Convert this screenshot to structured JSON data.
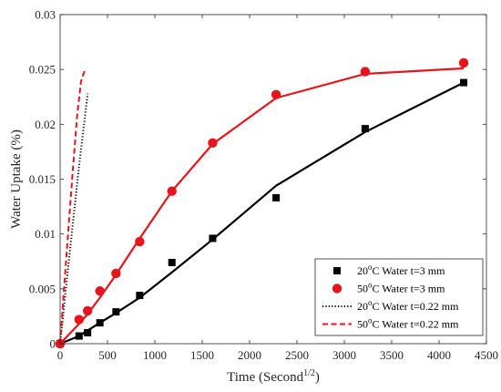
{
  "chart_data": {
    "type": "line",
    "xlabel": "Time (Second",
    "xlabel_sup": "1/2",
    "xlabel_end": ")",
    "ylabel": "Water Uptake (%)",
    "xlim": [
      0,
      4500
    ],
    "ylim": [
      0,
      0.03
    ],
    "xticks": [
      0,
      500,
      1000,
      1500,
      2000,
      2500,
      3000,
      3500,
      4000,
      4500
    ],
    "xtick_labels": [
      "0",
      "500",
      "1000",
      "1500",
      "2000",
      "2500",
      "3000",
      "3500",
      "4000",
      "4500"
    ],
    "yticks": [
      0,
      0.005,
      0.01,
      0.015,
      0.02,
      0.025,
      0.03
    ],
    "ytick_labels": [
      "0",
      "0.005",
      "0.01",
      "0.015",
      "0.02",
      "0.025",
      "0.03"
    ],
    "grid": false,
    "legend_position": "bottom-right",
    "colors": {
      "black": "#000000",
      "red": "#e8141b"
    },
    "series": [
      {
        "legend_pre": "20",
        "legend_sup": "o",
        "legend_post": "C Water t=3 mm",
        "kind": "markers",
        "marker": "square",
        "color": "#000000",
        "x": [
          0,
          200,
          290,
          420,
          590,
          840,
          1180,
          1610,
          2280,
          3220,
          4260
        ],
        "y": [
          0,
          0.0007,
          0.001,
          0.0019,
          0.0029,
          0.0044,
          0.0074,
          0.0096,
          0.0133,
          0.0196,
          0.0238
        ]
      },
      {
        "kind": "line",
        "style": "solid",
        "color": "#000000",
        "x": [
          0,
          200,
          290,
          420,
          590,
          840,
          1180,
          1610,
          2280,
          3220,
          4260
        ],
        "y": [
          0,
          0.0007,
          0.0012,
          0.0019,
          0.0028,
          0.0042,
          0.0065,
          0.0095,
          0.0144,
          0.0193,
          0.0238
        ]
      },
      {
        "legend_pre": "50",
        "legend_sup": "o",
        "legend_post": "C Water t=3 mm",
        "kind": "markers",
        "marker": "circle",
        "color": "#e8141b",
        "x": [
          0,
          200,
          290,
          420,
          590,
          840,
          1180,
          1610,
          2280,
          3220,
          4260
        ],
        "y": [
          0,
          0.0022,
          0.003,
          0.0048,
          0.0064,
          0.0093,
          0.0139,
          0.0183,
          0.0227,
          0.0248,
          0.0256
        ]
      },
      {
        "kind": "line",
        "style": "solid",
        "color": "#e8141b",
        "x": [
          0,
          200,
          290,
          420,
          590,
          840,
          1180,
          1610,
          2280,
          3220,
          4260
        ],
        "y": [
          0,
          0.0018,
          0.0027,
          0.0042,
          0.0063,
          0.0096,
          0.0139,
          0.0182,
          0.0224,
          0.0246,
          0.0251
        ]
      },
      {
        "legend_pre": "20",
        "legend_sup": "o",
        "legend_post": "C Water t=0.22 mm",
        "kind": "line",
        "style": "dotted",
        "color": "#000000",
        "x": [
          0,
          30,
          60,
          100,
          150,
          200,
          250,
          290
        ],
        "y": [
          0,
          0.0024,
          0.0049,
          0.0082,
          0.0122,
          0.0162,
          0.0198,
          0.0228
        ]
      },
      {
        "legend_pre": "50",
        "legend_sup": "o",
        "legend_post": "C Water t=0.22 mm",
        "kind": "line",
        "style": "dashed",
        "color": "#e8141b",
        "x": [
          0,
          30,
          60,
          100,
          140,
          180,
          220,
          260
        ],
        "y": [
          0,
          0.0036,
          0.0072,
          0.0119,
          0.0165,
          0.0208,
          0.0239,
          0.0249
        ]
      }
    ]
  }
}
